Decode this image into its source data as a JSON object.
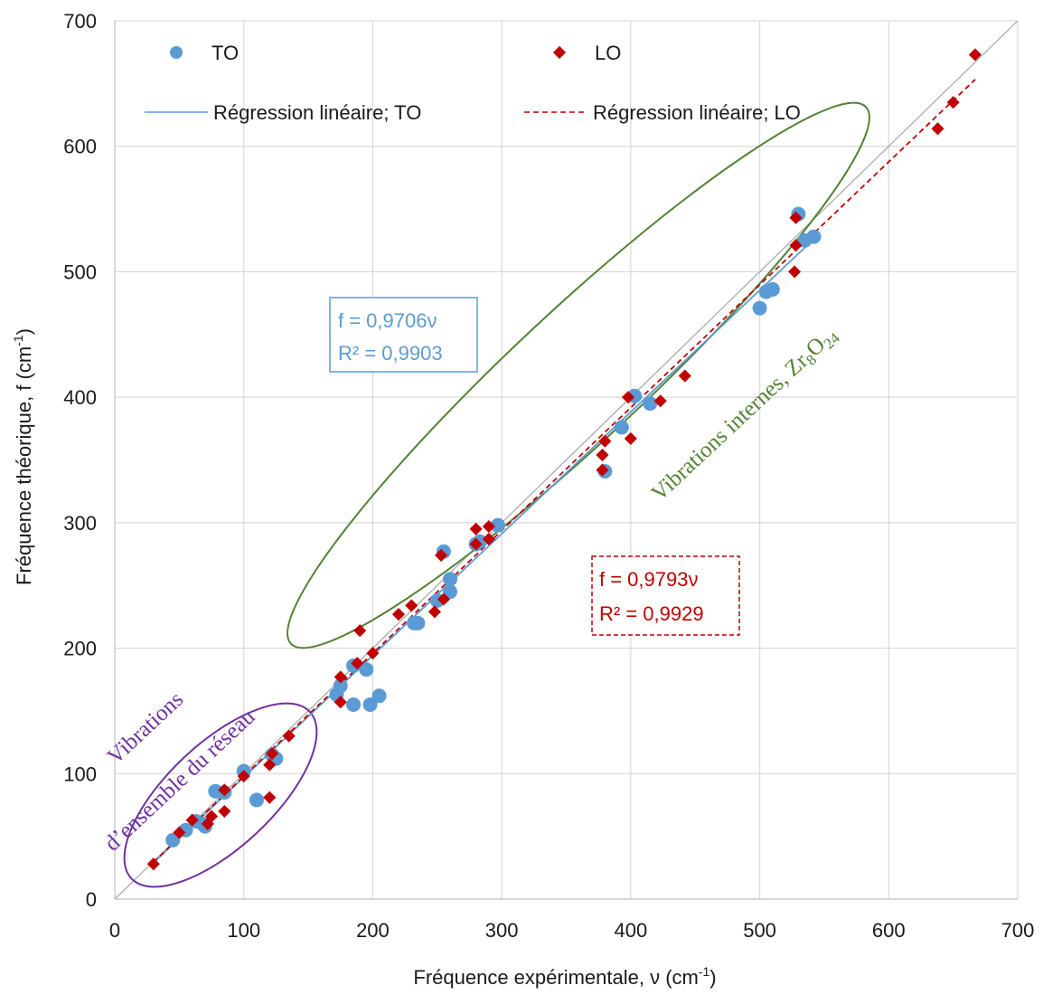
{
  "chart_data": {
    "type": "scatter",
    "title": "",
    "xlabel": "Fréquence expérimentale, ν (cm",
    "xlabel_sup": "-1",
    "xlabel_end": ")",
    "ylabel": "Fréquence théorique, f (cm",
    "ylabel_sup": "-1",
    "ylabel_end": ")",
    "xlim": [
      0,
      700
    ],
    "ylim": [
      0,
      700
    ],
    "xticks": [
      0,
      100,
      200,
      300,
      400,
      500,
      600,
      700
    ],
    "yticks": [
      0,
      100,
      200,
      300,
      400,
      500,
      600,
      700
    ],
    "grid": true,
    "legend_position": "top",
    "series": [
      {
        "name": "TO",
        "marker": "circle",
        "color": "#5b9bd5",
        "points": [
          [
            45,
            47
          ],
          [
            55,
            55
          ],
          [
            63,
            62
          ],
          [
            68,
            60
          ],
          [
            70,
            58
          ],
          [
            78,
            86
          ],
          [
            85,
            85
          ],
          [
            100,
            102
          ],
          [
            110,
            79
          ],
          [
            122,
            115
          ],
          [
            125,
            112
          ],
          [
            172,
            163
          ],
          [
            175,
            170
          ],
          [
            185,
            155
          ],
          [
            185,
            186
          ],
          [
            195,
            183
          ],
          [
            198,
            155
          ],
          [
            205,
            162
          ],
          [
            232,
            220
          ],
          [
            235,
            220
          ],
          [
            250,
            238
          ],
          [
            255,
            277
          ],
          [
            260,
            245
          ],
          [
            260,
            255
          ],
          [
            280,
            283
          ],
          [
            283,
            285
          ],
          [
            297,
            298
          ],
          [
            380,
            341
          ],
          [
            393,
            376
          ],
          [
            403,
            401
          ],
          [
            415,
            395
          ],
          [
            500,
            471
          ],
          [
            505,
            484
          ],
          [
            510,
            486
          ],
          [
            530,
            546
          ],
          [
            535,
            525
          ],
          [
            542,
            528
          ]
        ]
      },
      {
        "name": "LO",
        "marker": "diamond",
        "color": "#c00000",
        "points": [
          [
            30,
            28
          ],
          [
            50,
            53
          ],
          [
            60,
            63
          ],
          [
            72,
            60
          ],
          [
            75,
            66
          ],
          [
            85,
            70
          ],
          [
            85,
            87
          ],
          [
            100,
            98
          ],
          [
            120,
            107
          ],
          [
            120,
            81
          ],
          [
            122,
            116
          ],
          [
            135,
            130
          ],
          [
            175,
            177
          ],
          [
            175,
            157
          ],
          [
            188,
            188
          ],
          [
            190,
            214
          ],
          [
            200,
            196
          ],
          [
            220,
            227
          ],
          [
            230,
            234
          ],
          [
            248,
            229
          ],
          [
            253,
            274
          ],
          [
            255,
            239
          ],
          [
            280,
            295
          ],
          [
            280,
            283
          ],
          [
            290,
            297
          ],
          [
            290,
            287
          ],
          [
            378,
            342
          ],
          [
            378,
            354
          ],
          [
            380,
            365
          ],
          [
            398,
            400
          ],
          [
            400,
            367
          ],
          [
            423,
            397
          ],
          [
            442,
            417
          ],
          [
            527,
            500
          ],
          [
            528,
            543
          ],
          [
            528,
            521
          ],
          [
            638,
            614
          ],
          [
            650,
            635
          ],
          [
            667,
            673
          ]
        ]
      }
    ],
    "fits": [
      {
        "name": "Régression linéaire; TO",
        "slope": 0.9706,
        "x_range": [
          30,
          542
        ],
        "color": "#5b9bd5",
        "dash": "solid"
      },
      {
        "name": "Régression linéaire; LO",
        "slope": 0.9793,
        "x_range": [
          30,
          667
        ],
        "color": "#c00000",
        "dash": "dashed"
      }
    ],
    "identity_line": {
      "x_range": [
        0,
        700
      ],
      "color": "#a6a6a6"
    },
    "equations": {
      "to": {
        "line1": "f = 0,9706ν",
        "line2": "R² = 0,9903",
        "color": "#5b9bd5"
      },
      "lo": {
        "line1": "f = 0,9793ν",
        "line2": "R² = 0,9929",
        "color": "#c00000"
      }
    },
    "annotations": {
      "lattice": {
        "line1": "Vibrations",
        "line2": "d’ensemble du réseau",
        "color": "#7030a0"
      },
      "internal": {
        "text": "Vibrations internes, Zr",
        "sub1": "8",
        "mid": "O",
        "sub2": "24",
        "color": "#548235"
      }
    }
  }
}
